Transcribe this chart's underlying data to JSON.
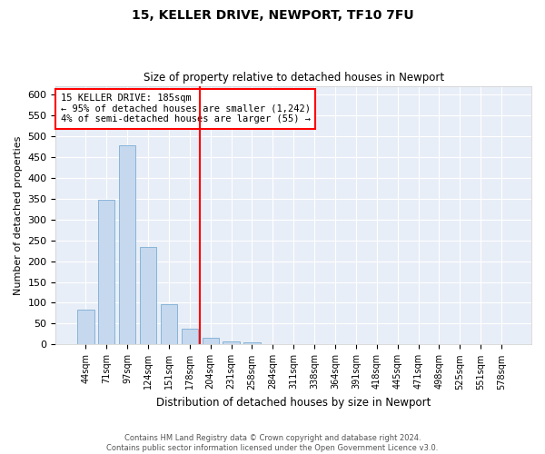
{
  "title1": "15, KELLER DRIVE, NEWPORT, TF10 7FU",
  "title2": "Size of property relative to detached houses in Newport",
  "xlabel": "Distribution of detached houses by size in Newport",
  "ylabel": "Number of detached properties",
  "categories": [
    "44sqm",
    "71sqm",
    "97sqm",
    "124sqm",
    "151sqm",
    "178sqm",
    "204sqm",
    "231sqm",
    "258sqm",
    "284sqm",
    "311sqm",
    "338sqm",
    "364sqm",
    "391sqm",
    "418sqm",
    "445sqm",
    "471sqm",
    "498sqm",
    "525sqm",
    "551sqm",
    "578sqm"
  ],
  "values": [
    83,
    348,
    478,
    233,
    96,
    37,
    16,
    7,
    5,
    2,
    1,
    0,
    0,
    0,
    0,
    0,
    0,
    0,
    0,
    0,
    0
  ],
  "bar_color": "#c5d8ee",
  "bar_edge_color": "#7aadd4",
  "vline_x": 5.5,
  "vline_color": "red",
  "annotation_line1": "15 KELLER DRIVE: 185sqm",
  "annotation_line2": "← 95% of detached houses are smaller (1,242)",
  "annotation_line3": "4% of semi-detached houses are larger (55) →",
  "annotation_box_color": "white",
  "annotation_box_edge": "red",
  "ylim": [
    0,
    620
  ],
  "yticks": [
    0,
    50,
    100,
    150,
    200,
    250,
    300,
    350,
    400,
    450,
    500,
    550,
    600
  ],
  "footer1": "Contains HM Land Registry data © Crown copyright and database right 2024.",
  "footer2": "Contains public sector information licensed under the Open Government Licence v3.0.",
  "bg_color": "#ffffff",
  "plot_bg_color": "#e8eef7",
  "grid_color": "#ffffff",
  "title1_fontsize": 10,
  "title2_fontsize": 9
}
